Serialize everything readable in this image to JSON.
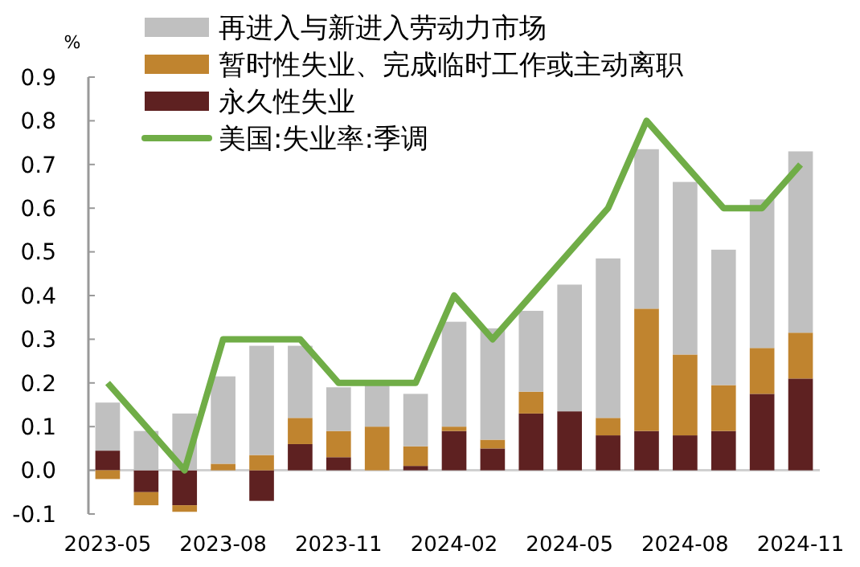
{
  "chart_data": {
    "type": "bar",
    "stacked": true,
    "ylabel": "%",
    "legend": "top",
    "grid": false,
    "categories": [
      "2023-05",
      null,
      null,
      "2023-08",
      null,
      null,
      "2023-11",
      null,
      null,
      "2024-02",
      null,
      null,
      "2024-05",
      null,
      null,
      "2024-08",
      null,
      null,
      "2024-11"
    ],
    "ylim": [
      -0.1,
      0.9
    ],
    "yticks": [
      {
        "value": -0.1,
        "label": "-0.1"
      },
      {
        "value": 0,
        "label": "0.0"
      },
      0.1,
      0.2,
      0.3,
      0.4,
      0.5,
      0.6,
      0.7,
      0.8,
      0.9
    ],
    "ref_lines": [
      {
        "axis": "y",
        "value": 0,
        "color": "#d0d0d0"
      }
    ],
    "series": [
      {
        "name": "永久性失业",
        "color": "#5e2121",
        "values": [
          0.045,
          -0.05,
          -0.08,
          0,
          -0.07,
          0.06,
          0.03,
          0,
          0.01,
          0.09,
          0.05,
          0.13,
          0.135,
          0.08,
          0.09,
          0.08,
          0.09,
          0.175,
          0.21
        ]
      },
      {
        "name": "暂时性失业、完成临时工作或主动离职",
        "color": "#c0842f",
        "values": [
          -0.02,
          -0.03,
          -0.015,
          0.015,
          0.035,
          0.06,
          0.06,
          0.1,
          0.045,
          0.01,
          0.02,
          0.05,
          0,
          0.04,
          0.28,
          0.185,
          0.105,
          0.105,
          0.105
        ]
      },
      {
        "name": "再进入与新进入劳动力市场",
        "color": "#c0c0c0",
        "values": [
          0.11,
          0.09,
          0.13,
          0.2,
          0.25,
          0.165,
          0.1,
          0.095,
          0.12,
          0.24,
          0.255,
          0.185,
          0.29,
          0.365,
          0.365,
          0.395,
          0.31,
          0.34,
          0.415
        ]
      },
      {
        "name": "美国:失业率:季调",
        "type": "line",
        "color": "#70ad47",
        "marker": "none",
        "values": [
          0.2,
          0.1,
          0.0,
          0.3,
          0.3,
          0.3,
          0.2,
          0.2,
          0.2,
          0.4,
          0.3,
          0.4,
          0.5,
          0.6,
          0.8,
          0.7,
          0.6,
          0.6,
          0.7
        ]
      }
    ]
  }
}
